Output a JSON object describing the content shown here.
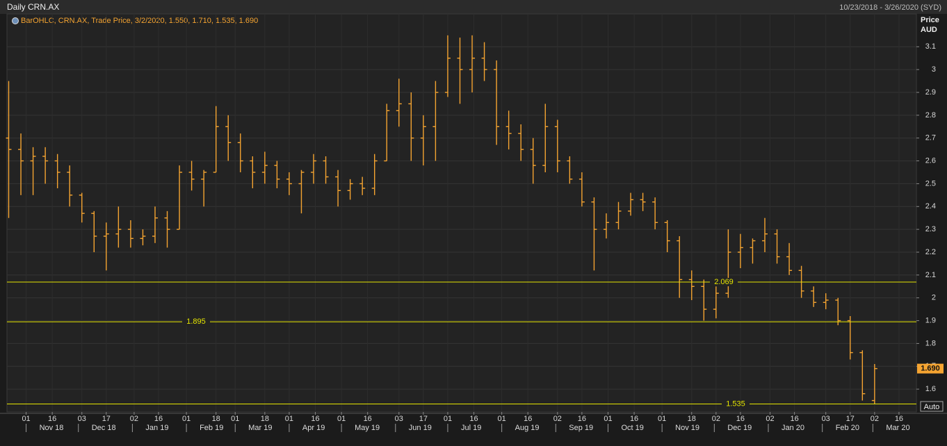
{
  "chart_data": {
    "type": "ohlc",
    "title": "Daily CRN.AX",
    "date_range": "10/23/2018 - 3/26/2020 (SYD)",
    "legend": "BarOHLC, CRN.AX, Trade Price, 3/2/2020, 1.550, 1.710, 1.535, 1.690",
    "y_label": "Price",
    "y_unit": "AUD",
    "scale_mode": "Auto",
    "color": "#f5a431",
    "line_color": "#e6e600",
    "x": [
      "2018-10-22",
      "2018-10-29",
      "2018-11-05",
      "2018-11-12",
      "2018-11-19",
      "2018-11-26",
      "2018-12-03",
      "2018-12-10",
      "2018-12-17",
      "2018-12-24",
      "2018-12-31",
      "2019-01-07",
      "2019-01-14",
      "2019-01-21",
      "2019-01-28",
      "2019-02-04",
      "2019-02-11",
      "2019-02-18",
      "2019-02-25",
      "2019-03-04",
      "2019-03-11",
      "2019-03-18",
      "2019-03-25",
      "2019-04-01",
      "2019-04-08",
      "2019-04-15",
      "2019-04-22",
      "2019-04-29",
      "2019-05-06",
      "2019-05-13",
      "2019-05-20",
      "2019-05-27",
      "2019-06-03",
      "2019-06-10",
      "2019-06-17",
      "2019-06-24",
      "2019-07-01",
      "2019-07-08",
      "2019-07-15",
      "2019-07-22",
      "2019-07-29",
      "2019-08-05",
      "2019-08-12",
      "2019-08-19",
      "2019-08-26",
      "2019-09-02",
      "2019-09-09",
      "2019-09-16",
      "2019-09-23",
      "2019-09-30",
      "2019-10-07",
      "2019-10-14",
      "2019-10-21",
      "2019-10-28",
      "2019-11-04",
      "2019-11-11",
      "2019-11-18",
      "2019-11-25",
      "2019-12-02",
      "2019-12-09",
      "2019-12-16",
      "2019-12-23",
      "2019-12-30",
      "2020-01-06",
      "2020-01-13",
      "2020-01-20",
      "2020-01-27",
      "2020-02-03",
      "2020-02-10",
      "2020-02-17",
      "2020-02-24",
      "2020-03-02"
    ],
    "open": [
      2.7,
      2.65,
      2.6,
      2.62,
      2.6,
      2.55,
      2.45,
      2.37,
      2.27,
      2.28,
      2.3,
      2.26,
      2.27,
      2.35,
      2.3,
      2.55,
      2.52,
      2.55,
      2.75,
      2.68,
      2.6,
      2.55,
      2.58,
      2.52,
      2.5,
      2.55,
      2.6,
      2.53,
      2.47,
      2.5,
      2.48,
      2.6,
      2.82,
      2.85,
      2.7,
      2.75,
      2.9,
      3.05,
      3.0,
      3.05,
      3.0,
      2.75,
      2.72,
      2.65,
      2.58,
      2.75,
      2.6,
      2.52,
      2.42,
      2.3,
      2.33,
      2.38,
      2.43,
      2.42,
      2.33,
      2.25,
      2.08,
      2.05,
      1.95,
      2.02,
      2.2,
      2.22,
      2.25,
      2.28,
      2.18,
      2.12,
      2.03,
      1.98,
      1.99,
      1.9,
      1.76,
      1.55
    ],
    "high": [
      2.95,
      2.72,
      2.66,
      2.66,
      2.63,
      2.58,
      2.46,
      2.38,
      2.33,
      2.4,
      2.34,
      2.3,
      2.4,
      2.38,
      2.58,
      2.6,
      2.56,
      2.84,
      2.8,
      2.72,
      2.62,
      2.64,
      2.6,
      2.55,
      2.56,
      2.63,
      2.62,
      2.56,
      2.52,
      2.53,
      2.63,
      2.85,
      2.96,
      2.9,
      2.8,
      2.95,
      3.15,
      3.14,
      3.15,
      3.12,
      3.04,
      2.82,
      2.76,
      2.7,
      2.85,
      2.78,
      2.62,
      2.55,
      2.44,
      2.37,
      2.42,
      2.46,
      2.46,
      2.44,
      2.34,
      2.27,
      2.12,
      2.08,
      2.05,
      2.3,
      2.28,
      2.26,
      2.35,
      2.3,
      2.24,
      2.14,
      2.05,
      2.02,
      2.0,
      1.92,
      1.77,
      1.71
    ],
    "low": [
      2.35,
      2.45,
      2.45,
      2.5,
      2.48,
      2.4,
      2.33,
      2.2,
      2.12,
      2.22,
      2.22,
      2.23,
      2.24,
      2.22,
      2.3,
      2.47,
      2.4,
      2.55,
      2.6,
      2.55,
      2.48,
      2.5,
      2.48,
      2.45,
      2.37,
      2.5,
      2.5,
      2.4,
      2.43,
      2.45,
      2.45,
      2.6,
      2.75,
      2.6,
      2.58,
      2.6,
      2.88,
      2.85,
      2.9,
      2.95,
      2.67,
      2.65,
      2.6,
      2.5,
      2.55,
      2.55,
      2.5,
      2.4,
      2.12,
      2.26,
      2.3,
      2.36,
      2.38,
      2.3,
      2.2,
      2.0,
      1.99,
      1.9,
      1.91,
      2.0,
      2.13,
      2.15,
      2.2,
      2.15,
      2.1,
      2.0,
      1.96,
      1.95,
      1.88,
      1.73,
      1.55,
      1.535
    ],
    "close": [
      2.65,
      2.6,
      2.62,
      2.6,
      2.55,
      2.45,
      2.37,
      2.27,
      2.28,
      2.3,
      2.26,
      2.27,
      2.35,
      2.3,
      2.55,
      2.52,
      2.55,
      2.75,
      2.68,
      2.6,
      2.55,
      2.58,
      2.52,
      2.5,
      2.55,
      2.6,
      2.53,
      2.47,
      2.5,
      2.48,
      2.6,
      2.82,
      2.85,
      2.7,
      2.75,
      2.9,
      3.05,
      3.0,
      3.05,
      3.0,
      2.75,
      2.72,
      2.65,
      2.58,
      2.75,
      2.6,
      2.52,
      2.42,
      2.3,
      2.33,
      2.38,
      2.43,
      2.42,
      2.33,
      2.25,
      2.08,
      2.05,
      1.95,
      2.02,
      2.2,
      2.22,
      2.25,
      2.28,
      2.18,
      2.12,
      2.03,
      1.98,
      1.99,
      1.9,
      1.76,
      1.58,
      1.69
    ],
    "xlim": [
      "2018-10-21",
      "2020-03-26"
    ],
    "ylim": [
      1.5,
      3.25
    ],
    "yticks": [
      1.6,
      1.7,
      1.8,
      1.9,
      2,
      2.1,
      2.2,
      2.3,
      2.4,
      2.5,
      2.6,
      2.7,
      2.8,
      2.9,
      3,
      3.1
    ],
    "xticks": [
      {
        "value": "2018-11-01",
        "label": "01"
      },
      {
        "value": "2018-11-16",
        "label": "16"
      },
      {
        "value": "2018-12-03",
        "label": "03"
      },
      {
        "value": "2018-12-17",
        "label": "17"
      },
      {
        "value": "2019-01-02",
        "label": "02"
      },
      {
        "value": "2019-01-16",
        "label": "16"
      },
      {
        "value": "2019-02-01",
        "label": "01"
      },
      {
        "value": "2019-02-18",
        "label": "18"
      },
      {
        "value": "2019-03-01",
        "label": "01"
      },
      {
        "value": "2019-03-18",
        "label": "18"
      },
      {
        "value": "2019-04-01",
        "label": "01"
      },
      {
        "value": "2019-04-16",
        "label": "16"
      },
      {
        "value": "2019-05-01",
        "label": "01"
      },
      {
        "value": "2019-05-16",
        "label": "16"
      },
      {
        "value": "2019-06-03",
        "label": "03"
      },
      {
        "value": "2019-06-17",
        "label": "17"
      },
      {
        "value": "2019-07-01",
        "label": "01"
      },
      {
        "value": "2019-07-16",
        "label": "16"
      },
      {
        "value": "2019-08-01",
        "label": "01"
      },
      {
        "value": "2019-08-16",
        "label": "16"
      },
      {
        "value": "2019-09-02",
        "label": "02"
      },
      {
        "value": "2019-09-16",
        "label": "16"
      },
      {
        "value": "2019-10-01",
        "label": "01"
      },
      {
        "value": "2019-10-16",
        "label": "16"
      },
      {
        "value": "2019-11-01",
        "label": "01"
      },
      {
        "value": "2019-11-18",
        "label": "18"
      },
      {
        "value": "2019-12-02",
        "label": "02"
      },
      {
        "value": "2019-12-16",
        "label": "16"
      },
      {
        "value": "2020-01-02",
        "label": "02"
      },
      {
        "value": "2020-01-16",
        "label": "16"
      },
      {
        "value": "2020-02-03",
        "label": "03"
      },
      {
        "value": "2020-02-17",
        "label": "17"
      },
      {
        "value": "2020-03-02",
        "label": "02"
      },
      {
        "value": "2020-03-16",
        "label": "16"
      }
    ],
    "month_ticks": [
      {
        "value": "2018-11-01",
        "label": "Nov 18"
      },
      {
        "value": "2018-12-01",
        "label": "Dec 18"
      },
      {
        "value": "2019-01-01",
        "label": "Jan 19"
      },
      {
        "value": "2019-02-01",
        "label": "Feb 19"
      },
      {
        "value": "2019-03-01",
        "label": "Mar 19"
      },
      {
        "value": "2019-04-01",
        "label": "Apr 19"
      },
      {
        "value": "2019-05-01",
        "label": "May 19"
      },
      {
        "value": "2019-06-01",
        "label": "Jun 19"
      },
      {
        "value": "2019-07-01",
        "label": "Jul 19"
      },
      {
        "value": "2019-08-01",
        "label": "Aug 19"
      },
      {
        "value": "2019-09-01",
        "label": "Sep 19"
      },
      {
        "value": "2019-10-01",
        "label": "Oct 19"
      },
      {
        "value": "2019-11-01",
        "label": "Nov 19"
      },
      {
        "value": "2019-12-01",
        "label": "Dec 19"
      },
      {
        "value": "2020-01-01",
        "label": "Jan 20"
      },
      {
        "value": "2020-02-01",
        "label": "Feb 20"
      },
      {
        "value": "2020-03-01",
        "label": "Mar 20"
      }
    ],
    "hlines": [
      2.069,
      1.895,
      1.535
    ],
    "last_price": {
      "value": 1.69,
      "label": "1.690"
    },
    "grid": true
  }
}
